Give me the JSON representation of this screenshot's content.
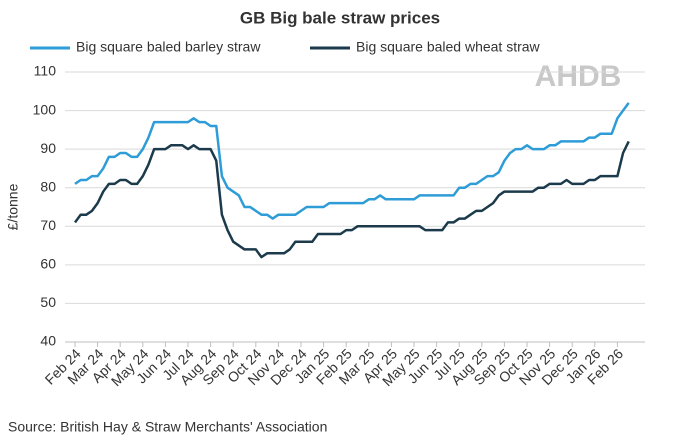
{
  "chart_data": {
    "type": "line",
    "title": "GB Big bale straw prices",
    "y_label": "£/tonne",
    "source": "Source: British Hay & Straw Merchants' Association",
    "logo": "AHDB",
    "categories": [
      "Feb 24",
      null,
      null,
      null,
      "Mar 24",
      null,
      null,
      null,
      "Apr 24",
      null,
      null,
      null,
      "May 24",
      null,
      null,
      null,
      "Jun 24",
      null,
      null,
      null,
      "Jul 24",
      null,
      null,
      null,
      "Aug 24",
      null,
      null,
      null,
      "Sep 24",
      null,
      null,
      null,
      "Oct 24",
      null,
      null,
      null,
      "Nov 24",
      null,
      null,
      null,
      "Dec 24",
      null,
      null,
      null,
      "Jan 25",
      null,
      null,
      null,
      "Feb 25",
      null,
      null,
      null,
      "Mar 25",
      null,
      null,
      null,
      "Apr 25",
      null,
      null,
      null,
      "May 25",
      null,
      null,
      null,
      "Jun 25",
      null,
      null,
      null,
      "Jul 25",
      null,
      null,
      null,
      "Aug 25",
      null,
      null,
      null,
      "Sep 25",
      null,
      null,
      null,
      "Oct 25",
      null,
      null,
      null,
      "Nov 25",
      null,
      null,
      null,
      "Dec 25",
      null,
      null,
      null,
      "Jan 26",
      null,
      null,
      null,
      "Feb 26",
      null,
      null
    ],
    "series": [
      {
        "name": "Big square baled barley straw",
        "color": "#2e9cd6",
        "values": [
          81,
          82,
          82,
          83,
          83,
          85,
          88,
          88,
          89,
          89,
          88,
          88,
          90,
          93,
          97,
          97,
          97,
          97,
          97,
          97,
          97,
          98,
          97,
          97,
          96,
          96,
          83,
          80,
          79,
          78,
          75,
          75,
          74,
          73,
          73,
          72,
          73,
          73,
          73,
          73,
          74,
          75,
          75,
          75,
          75,
          76,
          76,
          76,
          76,
          76,
          76,
          76,
          77,
          77,
          78,
          77,
          77,
          77,
          77,
          77,
          77,
          78,
          78,
          78,
          78,
          78,
          78,
          78,
          80,
          80,
          81,
          81,
          82,
          83,
          83,
          84,
          87,
          89,
          90,
          90,
          91,
          90,
          90,
          90,
          91,
          91,
          92,
          92,
          92,
          92,
          92,
          93,
          93,
          94,
          94,
          94,
          98,
          100,
          102
        ]
      },
      {
        "name": "Big square baled wheat straw",
        "color": "#1b3a4b",
        "values": [
          71,
          73,
          73,
          74,
          76,
          79,
          81,
          81,
          82,
          82,
          81,
          81,
          83,
          86,
          90,
          90,
          90,
          91,
          91,
          91,
          90,
          91,
          90,
          90,
          90,
          87,
          73,
          69,
          66,
          65,
          64,
          64,
          64,
          62,
          63,
          63,
          63,
          63,
          64,
          66,
          66,
          66,
          66,
          68,
          68,
          68,
          68,
          68,
          69,
          69,
          70,
          70,
          70,
          70,
          70,
          70,
          70,
          70,
          70,
          70,
          70,
          70,
          69,
          69,
          69,
          69,
          71,
          71,
          72,
          72,
          73,
          74,
          74,
          75,
          76,
          78,
          79,
          79,
          79,
          79,
          79,
          79,
          80,
          80,
          81,
          81,
          81,
          82,
          81,
          81,
          81,
          82,
          82,
          83,
          83,
          83,
          83,
          89,
          92
        ]
      }
    ],
    "ylim": [
      40,
      110
    ],
    "yticks": [
      40,
      50,
      60,
      70,
      80,
      90,
      100,
      110
    ],
    "grid": true
  }
}
